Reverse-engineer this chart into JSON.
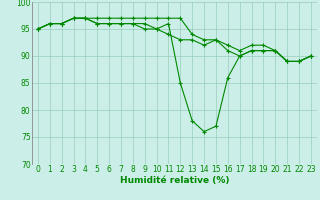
{
  "x": [
    0,
    1,
    2,
    3,
    4,
    5,
    6,
    7,
    8,
    9,
    10,
    11,
    12,
    13,
    14,
    15,
    16,
    17,
    18,
    19,
    20,
    21,
    22,
    23
  ],
  "series1": [
    95,
    96,
    96,
    97,
    97,
    97,
    97,
    97,
    97,
    97,
    97,
    97,
    97,
    94,
    93,
    93,
    92,
    91,
    92,
    92,
    91,
    89,
    89,
    90
  ],
  "series2": [
    95,
    96,
    96,
    97,
    97,
    96,
    96,
    96,
    96,
    96,
    95,
    96,
    85,
    78,
    76,
    77,
    86,
    90,
    91,
    91,
    91,
    89,
    89,
    90
  ],
  "series3": [
    95,
    96,
    96,
    97,
    97,
    96,
    96,
    96,
    96,
    95,
    95,
    94,
    93,
    93,
    92,
    93,
    91,
    90,
    91,
    91,
    91,
    89,
    89,
    90
  ],
  "xlabel": "Humidité relative (%)",
  "background_color": "#cceee8",
  "grid_color": "#99ccbb",
  "line_color": "#008800",
  "text_color": "#008800",
  "ylim": [
    70,
    100
  ],
  "xlim": [
    -0.5,
    23.5
  ],
  "yticks": [
    70,
    75,
    80,
    85,
    90,
    95,
    100
  ],
  "xticks": [
    0,
    1,
    2,
    3,
    4,
    5,
    6,
    7,
    8,
    9,
    10,
    11,
    12,
    13,
    14,
    15,
    16,
    17,
    18,
    19,
    20,
    21,
    22,
    23
  ],
  "tick_fontsize": 5.5,
  "xlabel_fontsize": 6.5
}
